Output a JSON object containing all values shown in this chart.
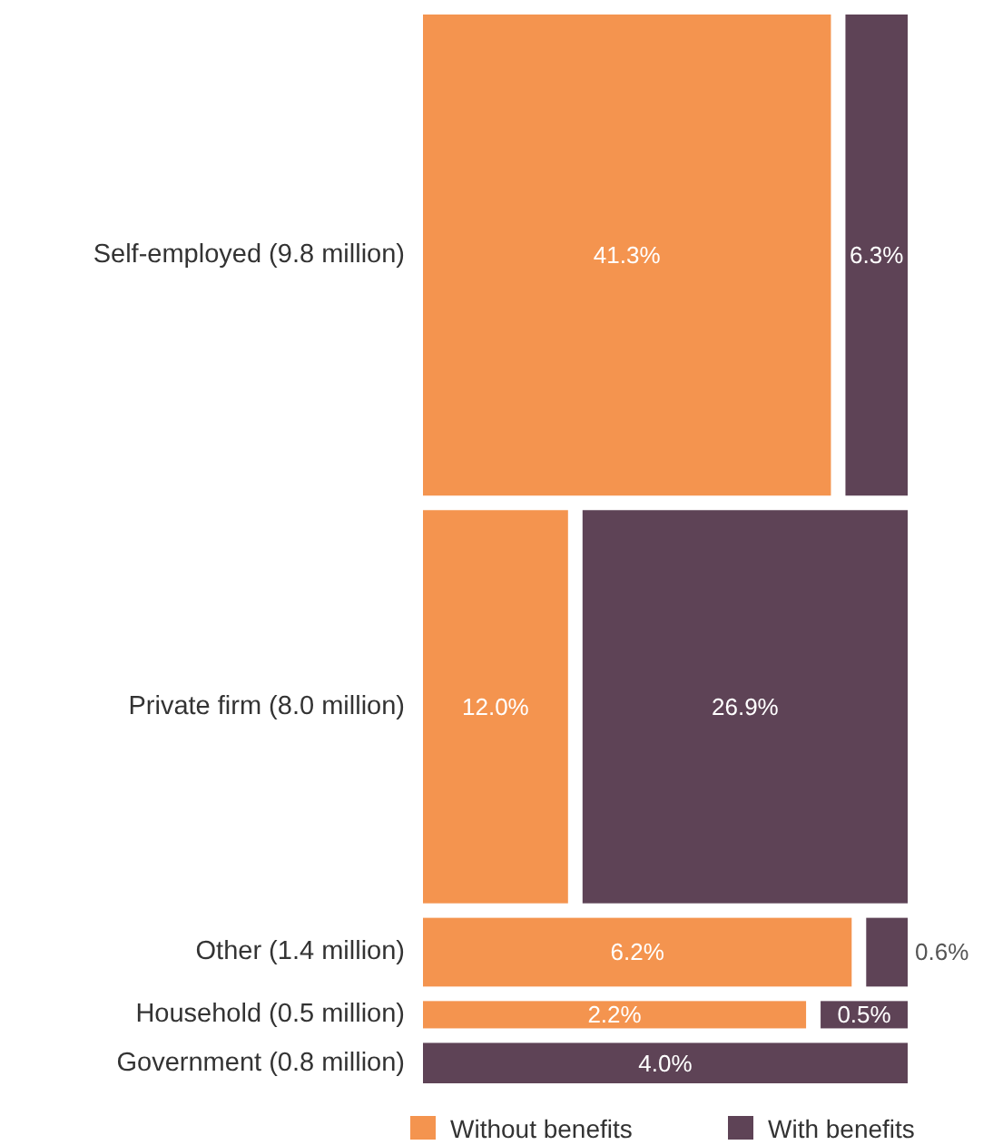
{
  "chart_data": {
    "type": "other",
    "categories": [
      "Self-employed (9.8 million)",
      "Private firm (8.0 million)",
      "Other (1.4 million)",
      "Household (0.5 million)",
      "Government (0.8 million)"
    ],
    "series": [
      {
        "name": "Without benefits",
        "color": "#f4944f",
        "values": [
          41.3,
          12.0,
          6.2,
          2.2,
          null
        ],
        "value_labels": [
          "41.3%",
          "12.0%",
          "6.2%",
          "2.2%",
          null
        ]
      },
      {
        "name": "With benefits",
        "color": "#5e4356",
        "values": [
          6.3,
          26.9,
          0.6,
          0.5,
          4.0
        ],
        "value_labels": [
          "6.3%",
          "26.9%",
          "0.6%",
          "0.5%",
          "4.0%"
        ]
      }
    ],
    "legend": "bottom"
  }
}
